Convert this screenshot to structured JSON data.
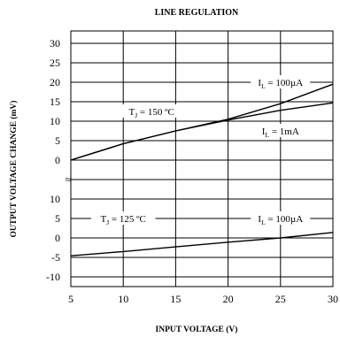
{
  "chart_data": {
    "type": "line",
    "title": "LINE REGULATION",
    "xlabel": "INPUT VOLTAGE (V)",
    "ylabel": "OUTPUT VOLTAGE CHANGE (mV)",
    "xlim": [
      5,
      30
    ],
    "x_ticks": [
      "5",
      "10",
      "15",
      "20",
      "25",
      "30"
    ],
    "grid": true,
    "broken_axis": true,
    "break_symbol": "≈",
    "panels": [
      {
        "y_ticks": [
          "30",
          "25",
          "20",
          "15",
          "10",
          "5",
          "0"
        ],
        "ylim": [
          0,
          30
        ],
        "annotations": [
          {
            "main": "T",
            "sub": "J",
            "rest": " = 150 ºC",
            "x": 12.7,
            "y": 12.5
          },
          {
            "main": "I",
            "sub": "L",
            "rest": " = 100µA",
            "x": 25.0,
            "y": 20.0
          },
          {
            "main": "I",
            "sub": "L",
            "rest": " = 1mA",
            "x": 25.0,
            "y": 7.5
          }
        ],
        "series": [
          {
            "name": "IL = 100µA",
            "x": [
              5,
              10,
              15,
              20,
              25,
              30
            ],
            "y": [
              0.0,
              4.2,
              7.5,
              10.5,
              14.5,
              19.5
            ]
          },
          {
            "name": "IL = 1mA",
            "x": [
              5,
              10,
              15,
              20,
              25,
              30
            ],
            "y": [
              0.0,
              4.2,
              7.5,
              10.3,
              12.8,
              14.7
            ]
          }
        ]
      },
      {
        "y_ticks": [
          "10",
          "5",
          "0",
          "-5",
          "-10"
        ],
        "ylim": [
          -10,
          10
        ],
        "annotations": [
          {
            "main": "T",
            "sub": "J",
            "rest": " = 125 ºC",
            "x": 10.0,
            "y": 5.0
          },
          {
            "main": "I",
            "sub": "L",
            "rest": " = 100µA",
            "x": 25.0,
            "y": 5.0
          }
        ],
        "series": [
          {
            "name": "IL = 100µA",
            "x": [
              5,
              10,
              15,
              20,
              25,
              30
            ],
            "y": [
              -4.6,
              -3.5,
              -2.3,
              -1.1,
              0.0,
              1.4
            ]
          }
        ]
      }
    ]
  }
}
